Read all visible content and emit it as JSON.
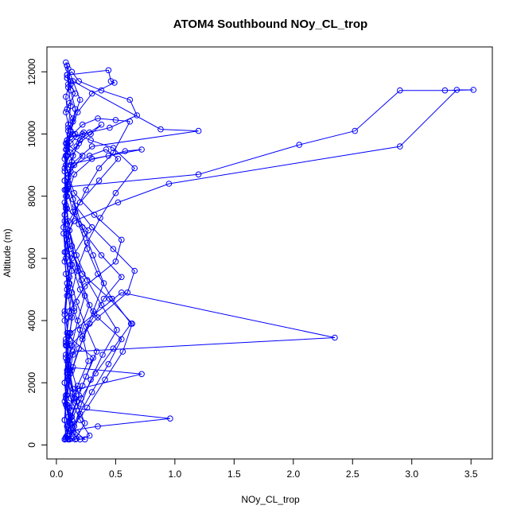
{
  "chart_data": {
    "type": "line",
    "title": "ATOM4 Southbound NOy_CL_trop",
    "xlabel": "NOy_CL_trop",
    "ylabel": "Altitude (m)",
    "xlim": [
      -0.08,
      3.68
    ],
    "ylim": [
      -450,
      12800
    ],
    "xticks": [
      0.0,
      0.5,
      1.0,
      1.5,
      2.0,
      2.5,
      3.0,
      3.5
    ],
    "xtick_labels": [
      "0.0",
      "0.5",
      "1.0",
      "1.5",
      "2.0",
      "2.5",
      "3.0",
      "3.5"
    ],
    "yticks": [
      0,
      2000,
      4000,
      6000,
      8000,
      10000,
      12000
    ],
    "ytick_labels": [
      "0",
      "2000",
      "4000",
      "6000",
      "8000",
      "10000",
      "12000"
    ],
    "grid": false,
    "series_color": "#0000ff",
    "marker": "open-circle",
    "series": [
      {
        "x": [
          0.08,
          0.12,
          0.22,
          0.31,
          0.1,
          0.07,
          0.09,
          0.13,
          0.27,
          0.09,
          0.07,
          0.12,
          0.22,
          0.08,
          0.1,
          0.14,
          0.09,
          0.08,
          0.1,
          0.12,
          0.09,
          0.13,
          0.19,
          0.38,
          0.62,
          0.68,
          0.45,
          0.22,
          0.12,
          0.09
        ],
        "y": [
          200,
          900,
          1900,
          2800,
          3500,
          4300,
          5200,
          6000,
          6900,
          7600,
          8200,
          8800,
          9300,
          9700,
          10100,
          10500,
          10800,
          11200,
          11500,
          11700,
          11900,
          12000,
          11700,
          11400,
          11100,
          10600,
          10200,
          10000,
          9900,
          9700
        ]
      },
      {
        "x": [
          0.09,
          0.07,
          0.1,
          0.15,
          0.32,
          0.55,
          0.5,
          0.24,
          0.11,
          0.09,
          0.08,
          0.1,
          0.12,
          0.2,
          0.28,
          0.2,
          0.13,
          0.09,
          0.07,
          0.09,
          0.12,
          0.35,
          0.6,
          0.66,
          0.48,
          0.3,
          0.16,
          0.1
        ],
        "y": [
          9700,
          9200,
          8700,
          8100,
          7400,
          6600,
          5900,
          5100,
          4300,
          3600,
          2900,
          2200,
          1500,
          800,
          300,
          180,
          200,
          600,
          1400,
          2300,
          3200,
          4100,
          4900,
          5600,
          6300,
          7000,
          7700,
          8300
        ]
      },
      {
        "x": [
          0.1,
          1.2,
          2.05,
          2.52,
          2.9,
          3.28,
          3.52,
          3.38,
          2.9,
          0.95,
          0.52,
          0.15,
          0.09
        ],
        "y": [
          8300,
          8700,
          9650,
          10100,
          11400,
          11400,
          11420,
          11420,
          9600,
          8400,
          7800,
          7200,
          6800
        ]
      },
      {
        "x": [
          0.09,
          0.07,
          0.08,
          0.1,
          0.13,
          0.11,
          0.09,
          0.07,
          0.09,
          0.12,
          0.08,
          0.07,
          0.1,
          0.14,
          0.1,
          0.08
        ],
        "y": [
          6800,
          6200,
          5500,
          4800,
          4100,
          3400,
          2700,
          2000,
          1300,
          700,
          250,
          180,
          900,
          1700,
          2500,
          3200
        ]
      },
      {
        "x": [
          0.08,
          0.12,
          0.55,
          2.35,
          0.14,
          0.1,
          0.72,
          0.18,
          0.11,
          0.96,
          0.35,
          0.11
        ],
        "y": [
          3200,
          3600,
          4900,
          3450,
          3000,
          2500,
          2280,
          1800,
          1200,
          850,
          600,
          450
        ]
      },
      {
        "x": [
          0.11,
          0.26,
          0.41,
          0.56,
          0.64,
          0.45,
          0.22,
          0.12,
          0.09,
          0.2,
          0.36,
          0.52,
          0.42,
          0.28,
          0.15,
          0.1
        ],
        "y": [
          450,
          1200,
          2100,
          3000,
          3900,
          4700,
          5500,
          6300,
          7100,
          7800,
          8500,
          9200,
          9500,
          9300,
          9000,
          8600
        ]
      },
      {
        "x": [
          0.1,
          0.14,
          0.22,
          0.31,
          0.4,
          0.31,
          0.22,
          0.14,
          0.09,
          0.07,
          0.1,
          0.16,
          0.24,
          0.15,
          0.09,
          0.08
        ],
        "y": [
          8600,
          7900,
          7000,
          6100,
          5200,
          4300,
          3400,
          2500,
          1600,
          800,
          200,
          180,
          700,
          1500,
          2400,
          3300
        ]
      },
      {
        "x": [
          0.08,
          0.1,
          0.13,
          0.18,
          0.26,
          0.37,
          0.5,
          0.66,
          0.48,
          0.29,
          0.16,
          0.1,
          0.08,
          0.11,
          0.16,
          0.12,
          0.09
        ],
        "y": [
          3300,
          4100,
          4900,
          5700,
          6500,
          7300,
          8100,
          8900,
          9550,
          9800,
          10000,
          10300,
          10700,
          11000,
          11300,
          11600,
          11800
        ]
      },
      {
        "x": [
          0.09,
          0.88,
          1.2,
          0.3,
          0.12,
          0.08,
          0.07,
          0.09,
          0.12,
          0.09,
          0.07,
          0.08,
          0.1,
          0.14,
          0.2,
          0.14,
          0.1,
          0.08
        ],
        "y": [
          11800,
          10150,
          10100,
          9600,
          9000,
          8200,
          7400,
          6600,
          5800,
          5000,
          4200,
          3400,
          2600,
          1800,
          1000,
          400,
          180,
          200
        ]
      },
      {
        "x": [
          0.08,
          0.11,
          0.17,
          0.25,
          0.34,
          0.25,
          0.17,
          0.11,
          0.08,
          0.06,
          0.07,
          0.1,
          0.14,
          0.2,
          0.28,
          0.38,
          0.29,
          0.19,
          0.12,
          0.08
        ],
        "y": [
          200,
          700,
          1400,
          2200,
          3000,
          3800,
          4600,
          5400,
          6200,
          7000,
          7800,
          8600,
          9300,
          9800,
          10050,
          10300,
          10000,
          9700,
          9400,
          9000
        ]
      },
      {
        "x": [
          0.08,
          0.44,
          0.58,
          0.72,
          0.3,
          0.15,
          0.09,
          0.07,
          0.09,
          0.13,
          0.09,
          0.07,
          0.09,
          0.13,
          0.19,
          0.13,
          0.09
        ],
        "y": [
          9000,
          9300,
          9450,
          9500,
          9200,
          8700,
          8000,
          7200,
          6400,
          5600,
          4800,
          4000,
          3200,
          2400,
          1600,
          900,
          300
        ]
      },
      {
        "x": [
          0.09,
          0.12,
          0.18,
          0.27,
          0.22,
          0.15,
          0.1,
          0.07,
          0.1,
          0.16,
          0.25,
          0.36,
          0.48,
          0.62,
          0.5,
          0.35,
          0.22,
          0.14,
          0.09
        ],
        "y": [
          300,
          1100,
          1900,
          2700,
          3500,
          4300,
          5100,
          5900,
          6700,
          7500,
          8200,
          8900,
          9400,
          10400,
          10450,
          10500,
          10300,
          10000,
          9800
        ]
      },
      {
        "x": [
          0.09,
          0.13,
          0.1,
          0.08,
          0.06,
          0.08,
          0.11,
          0.15,
          0.11,
          0.08,
          0.07,
          0.09,
          0.12,
          0.17,
          0.24,
          0.17,
          0.12,
          0.08
        ],
        "y": [
          9800,
          9100,
          8400,
          7600,
          6800,
          6000,
          5200,
          4400,
          3600,
          2800,
          2000,
          1200,
          500,
          200,
          180,
          400,
          900,
          1500
        ]
      },
      {
        "x": [
          0.08,
          0.12,
          0.19,
          0.28,
          0.4,
          0.55,
          0.38,
          0.24,
          0.14,
          0.09,
          0.07,
          0.09,
          0.14,
          0.2,
          0.14,
          0.1,
          0.08,
          0.09
        ],
        "y": [
          1500,
          2300,
          3100,
          3900,
          4700,
          5400,
          6100,
          6800,
          7500,
          8200,
          8900,
          9600,
          10400,
          11100,
          11700,
          12100,
          12300,
          12200
        ]
      },
      {
        "x": [
          0.09,
          0.1,
          0.12,
          0.1,
          0.08,
          0.07,
          0.08,
          0.1,
          0.13,
          0.18,
          0.24,
          0.18,
          0.13,
          0.1,
          0.08,
          0.07
        ],
        "y": [
          12200,
          11600,
          10900,
          10200,
          9500,
          8800,
          8000,
          7200,
          6400,
          5600,
          4800,
          4000,
          3200,
          2400,
          1600,
          800
        ]
      },
      {
        "x": [
          0.07,
          0.08,
          0.11,
          0.15,
          0.21,
          0.29,
          0.39,
          0.51,
          0.38,
          0.26,
          0.17,
          0.11,
          0.08,
          0.07,
          0.09,
          0.12,
          0.16,
          0.12,
          0.09
        ],
        "y": [
          800,
          200,
          180,
          600,
          1300,
          2100,
          2900,
          3700,
          4500,
          5300,
          6100,
          6900,
          7700,
          8500,
          9300,
          10100,
          10800,
          11400,
          11900
        ]
      },
      {
        "x": [
          0.09,
          0.44,
          0.46,
          0.49,
          0.3,
          0.18,
          0.11,
          0.08,
          0.07,
          0.08,
          0.11,
          0.15,
          0.21,
          0.28,
          0.2,
          0.14,
          0.1,
          0.08
        ],
        "y": [
          11900,
          12050,
          11700,
          11650,
          11300,
          10700,
          10000,
          9300,
          8500,
          7700,
          6900,
          6100,
          5300,
          4500,
          3700,
          2900,
          2100,
          1300
        ]
      },
      {
        "x": [
          0.08,
          0.12,
          0.3,
          0.44,
          0.55,
          0.32,
          0.2,
          0.13,
          0.09,
          0.07,
          0.09,
          0.12,
          0.17,
          0.23,
          0.17,
          0.12,
          0.09,
          0.08
        ],
        "y": [
          1300,
          500,
          1700,
          2600,
          3400,
          4200,
          5000,
          5800,
          6600,
          7400,
          8200,
          9000,
          9600,
          10050,
          9900,
          9700,
          9500,
          9300
        ]
      },
      {
        "x": [
          0.08,
          0.1,
          0.14,
          0.19,
          0.26,
          0.35,
          0.47,
          0.63,
          0.48,
          0.33,
          0.21,
          0.13,
          0.09,
          0.07
        ],
        "y": [
          9300,
          8600,
          7900,
          7100,
          6300,
          5500,
          4700,
          3900,
          3100,
          2300,
          1500,
          800,
          300,
          180
        ]
      }
    ]
  }
}
